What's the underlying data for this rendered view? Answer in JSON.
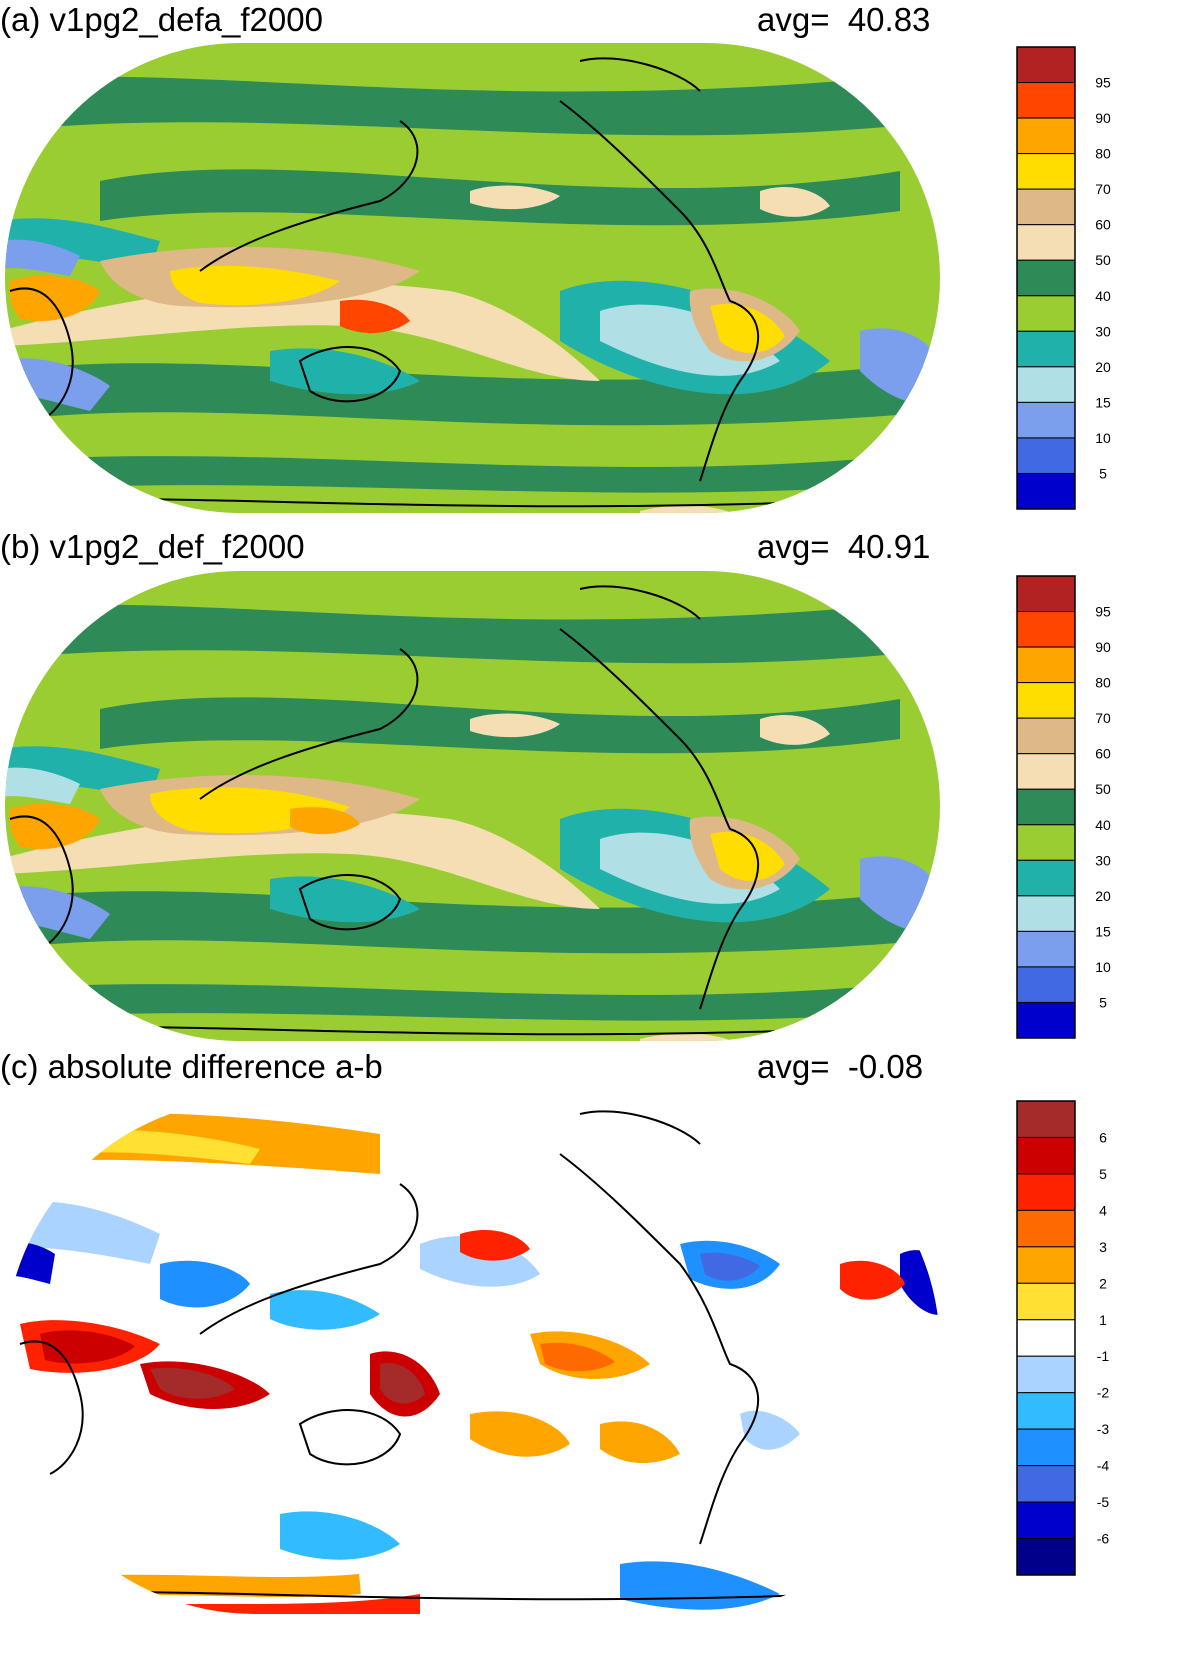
{
  "panels": [
    {
      "id": "a",
      "title": "(a) v1pg2_defa_f2000",
      "avg_label": "avg=",
      "avg_value": "40.83",
      "colorbar": {
        "labels": [
          "95",
          "90",
          "80",
          "70",
          "60",
          "50",
          "40",
          "30",
          "20",
          "15",
          "10",
          "5"
        ],
        "colors": [
          "#b22222",
          "#ff4500",
          "#ffa500",
          "#ffdd00",
          "#deb887",
          "#f5deb3",
          "#2e8b57",
          "#9acd32",
          "#20b2aa",
          "#b0e0e6",
          "#7b9eed",
          "#4169e1",
          "#0000cd"
        ]
      }
    },
    {
      "id": "b",
      "title": "(b) v1pg2_def_f2000",
      "avg_label": "avg=",
      "avg_value": "40.91",
      "colorbar": {
        "labels": [
          "95",
          "90",
          "80",
          "70",
          "60",
          "50",
          "40",
          "30",
          "20",
          "15",
          "10",
          "5"
        ],
        "colors": [
          "#b22222",
          "#ff4500",
          "#ffa500",
          "#ffdd00",
          "#deb887",
          "#f5deb3",
          "#2e8b57",
          "#9acd32",
          "#20b2aa",
          "#b0e0e6",
          "#7b9eed",
          "#4169e1",
          "#0000cd"
        ]
      }
    },
    {
      "id": "c",
      "title": "(c) absolute difference a-b",
      "avg_label": "avg=",
      "avg_value": "-0.08",
      "colorbar": {
        "labels": [
          "6",
          "5",
          "4",
          "3",
          "2",
          "1",
          "-1",
          "-2",
          "-3",
          "-4",
          "-5",
          "-6"
        ],
        "colors": [
          "#a52a2a",
          "#cc0000",
          "#ff2200",
          "#ff6a00",
          "#ffa500",
          "#ffe033",
          "#ffffff",
          "#aad4ff",
          "#33bbff",
          "#1e90ff",
          "#4169e1",
          "#0000cd",
          "#00008b"
        ]
      }
    }
  ]
}
